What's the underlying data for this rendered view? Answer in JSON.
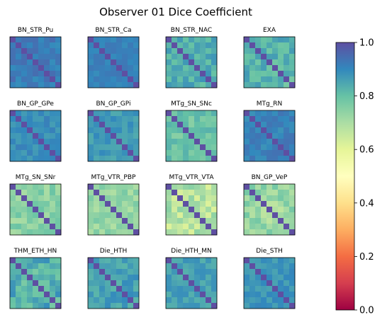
{
  "chart_data": {
    "type": "heatmap",
    "title": "Observer 01 Dice Coefficient",
    "layout": {
      "rows": 4,
      "cols": 4
    },
    "matrix_size": 9,
    "colormap": "Spectral",
    "colorbar": {
      "vmin": 0.0,
      "vmax": 1.0,
      "ticks": [
        0.0,
        0.2,
        0.4,
        0.6,
        0.8,
        1.0
      ],
      "tick_labels": [
        "0.0",
        "0.2",
        "0.4",
        "0.6",
        "0.8",
        "1.0"
      ]
    },
    "panels": [
      {
        "name": "BN_STR_Pu",
        "off_diagonal_mean": 0.92,
        "spread": 0.03
      },
      {
        "name": "BN_STR_Ca",
        "off_diagonal_mean": 0.91,
        "spread": 0.02
      },
      {
        "name": "BN_STR_NAC",
        "off_diagonal_mean": 0.84,
        "spread": 0.05
      },
      {
        "name": "EXA",
        "off_diagonal_mean": 0.82,
        "spread": 0.05
      },
      {
        "name": "BN_GP_GPe",
        "off_diagonal_mean": 0.89,
        "spread": 0.03
      },
      {
        "name": "BN_GP_GPi",
        "off_diagonal_mean": 0.87,
        "spread": 0.03
      },
      {
        "name": "MTg_SN_SNc",
        "off_diagonal_mean": 0.79,
        "spread": 0.04
      },
      {
        "name": "MTg_RN",
        "off_diagonal_mean": 0.91,
        "spread": 0.03
      },
      {
        "name": "MTg_SN_SNr",
        "off_diagonal_mean": 0.75,
        "spread": 0.05
      },
      {
        "name": "MTg_VTR_PBP",
        "off_diagonal_mean": 0.73,
        "spread": 0.05
      },
      {
        "name": "MTg_VTR_VTA",
        "off_diagonal_mean": 0.68,
        "spread": 0.07
      },
      {
        "name": "BN_GP_VeP",
        "off_diagonal_mean": 0.72,
        "spread": 0.06
      },
      {
        "name": "THM_ETH_HN",
        "off_diagonal_mean": 0.83,
        "spread": 0.06
      },
      {
        "name": "Die_HTH",
        "off_diagonal_mean": 0.86,
        "spread": 0.04
      },
      {
        "name": "Die_HTH_MN",
        "off_diagonal_mean": 0.86,
        "spread": 0.03
      },
      {
        "name": "Die_STH",
        "off_diagonal_mean": 0.88,
        "spread": 0.03
      }
    ]
  }
}
